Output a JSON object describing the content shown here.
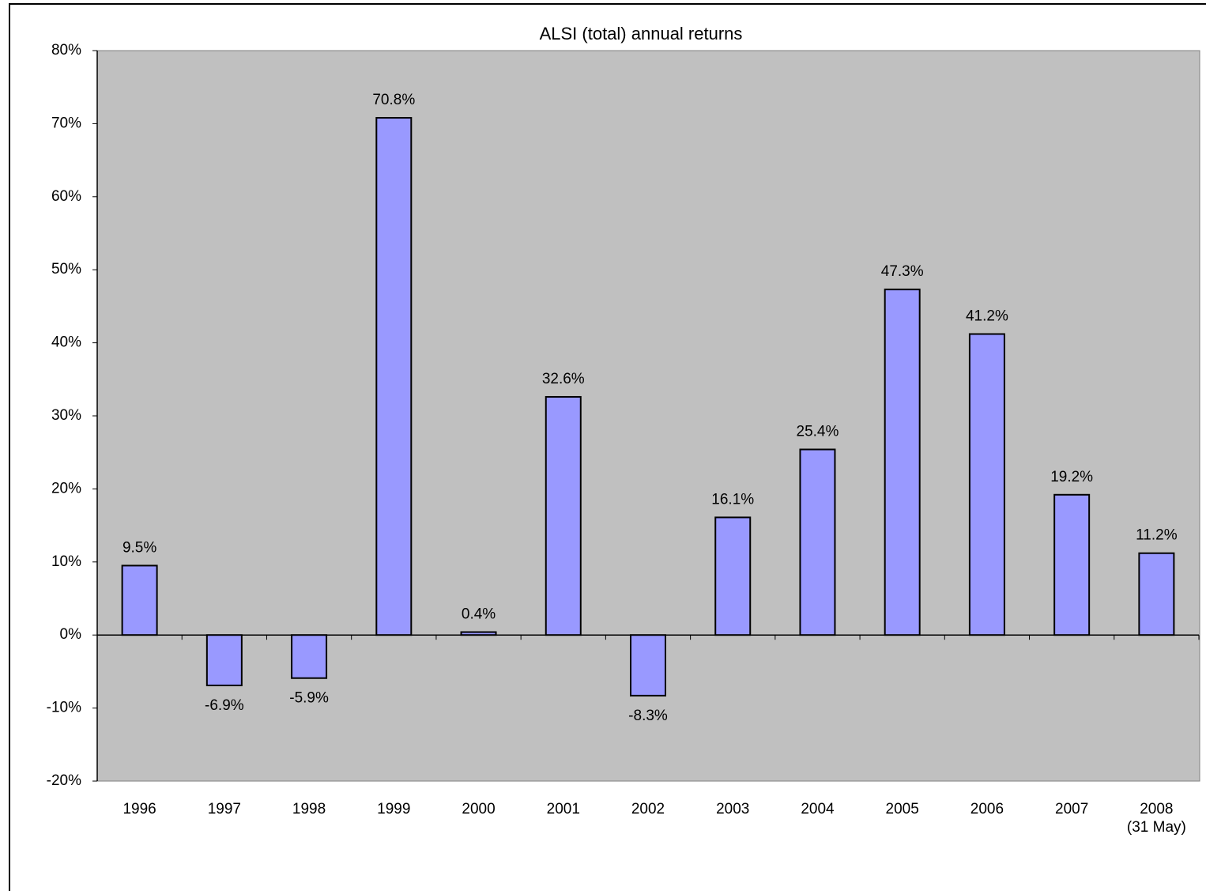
{
  "chart_data": {
    "type": "bar",
    "title": "ALSI (total) annual returns",
    "categories": [
      "1996",
      "1997",
      "1998",
      "1999",
      "2000",
      "2001",
      "2002",
      "2003",
      "2004",
      "2005",
      "2006",
      "2007",
      "2008\n(31 May)"
    ],
    "values": [
      9.5,
      -6.9,
      -5.9,
      70.8,
      0.4,
      32.6,
      -8.3,
      16.1,
      25.4,
      47.3,
      41.2,
      19.2,
      11.2
    ],
    "value_labels": [
      "9.5%",
      "-6.9%",
      "-5.9%",
      "70.8%",
      "0.4%",
      "32.6%",
      "-8.3%",
      "16.1%",
      "25.4%",
      "47.3%",
      "41.2%",
      "19.2%",
      "11.2%"
    ],
    "color": "#9999ff",
    "ylim": [
      -20,
      80
    ],
    "yticks": [
      {
        "value": -20,
        "label": "-20%"
      },
      {
        "value": -10,
        "label": "-10%"
      },
      {
        "value": 0,
        "label": "0%"
      },
      {
        "value": 10,
        "label": "10%"
      },
      {
        "value": 20,
        "label": "20%"
      },
      {
        "value": 30,
        "label": "30%"
      },
      {
        "value": 40,
        "label": "40%"
      },
      {
        "value": 50,
        "label": "50%"
      },
      {
        "value": 60,
        "label": "60%"
      },
      {
        "value": 70,
        "label": "70%"
      },
      {
        "value": 80,
        "label": "80%"
      }
    ],
    "grid": false
  }
}
